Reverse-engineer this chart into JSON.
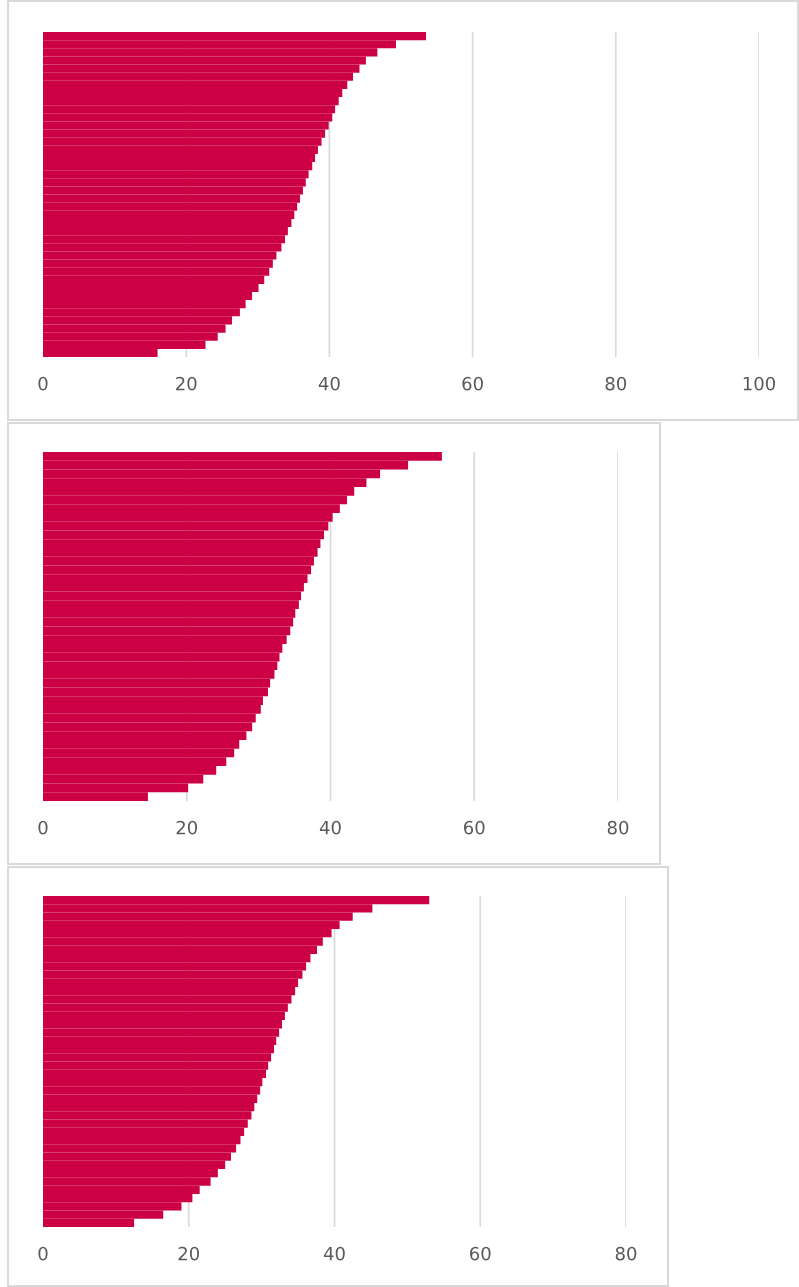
{
  "chart_data": [
    {
      "type": "bar",
      "orientation": "horizontal",
      "color": "#cc0044",
      "grid": "x",
      "tick_labels": "x",
      "xlim": [
        0,
        100
      ],
      "xticks": [
        0,
        20,
        40,
        60,
        80,
        100
      ],
      "categories": [
        null,
        null,
        null,
        null,
        null,
        null,
        null,
        null,
        null,
        null,
        null,
        null,
        null,
        null,
        null,
        null,
        null,
        null,
        null,
        null,
        null,
        null,
        null,
        null,
        null,
        null,
        null,
        null,
        null,
        null,
        null,
        null,
        null,
        null,
        null,
        null,
        null,
        null,
        null,
        null
      ],
      "values": [
        53.5,
        49.3,
        46.7,
        45.1,
        44.2,
        43.3,
        42.5,
        41.8,
        41.3,
        40.8,
        40.4,
        39.9,
        39.4,
        38.9,
        38.4,
        38.0,
        37.6,
        37.1,
        36.7,
        36.3,
        35.9,
        35.5,
        35.1,
        34.7,
        34.2,
        33.8,
        33.3,
        32.6,
        32.1,
        31.6,
        30.9,
        30.1,
        29.2,
        28.3,
        27.5,
        26.4,
        25.5,
        24.4,
        22.7,
        16.0
      ]
    },
    {
      "type": "bar",
      "orientation": "horizontal",
      "color": "#cc0044",
      "grid": "x",
      "tick_labels": "x",
      "xlim": [
        0,
        80
      ],
      "xticks": [
        0,
        20,
        40,
        60,
        80
      ],
      "categories": [
        null,
        null,
        null,
        null,
        null,
        null,
        null,
        null,
        null,
        null,
        null,
        null,
        null,
        null,
        null,
        null,
        null,
        null,
        null,
        null,
        null,
        null,
        null,
        null,
        null,
        null,
        null,
        null,
        null,
        null,
        null,
        null,
        null,
        null,
        null,
        null,
        null,
        null,
        null,
        null
      ],
      "values": [
        55.5,
        50.8,
        46.9,
        45.0,
        43.3,
        42.3,
        41.3,
        40.3,
        39.7,
        39.1,
        38.6,
        38.2,
        37.7,
        37.3,
        36.8,
        36.3,
        35.9,
        35.6,
        35.1,
        34.8,
        34.4,
        33.9,
        33.3,
        32.9,
        32.6,
        32.2,
        31.6,
        31.3,
        30.6,
        30.3,
        29.6,
        29.1,
        28.3,
        27.3,
        26.6,
        25.5,
        24.1,
        22.3,
        20.2,
        14.6
      ]
    },
    {
      "type": "bar",
      "orientation": "horizontal",
      "color": "#cc0044",
      "grid": "x",
      "tick_labels": "x",
      "xlim": [
        0,
        80
      ],
      "xticks": [
        0,
        20,
        40,
        60,
        80
      ],
      "categories": [
        null,
        null,
        null,
        null,
        null,
        null,
        null,
        null,
        null,
        null,
        null,
        null,
        null,
        null,
        null,
        null,
        null,
        null,
        null,
        null,
        null,
        null,
        null,
        null,
        null,
        null,
        null,
        null,
        null,
        null,
        null,
        null,
        null,
        null,
        null,
        null,
        null,
        null,
        null,
        null
      ],
      "values": [
        53.0,
        45.2,
        42.5,
        40.7,
        39.6,
        38.4,
        37.6,
        36.7,
        36.1,
        35.6,
        35.0,
        34.6,
        34.1,
        33.6,
        33.2,
        32.8,
        32.4,
        32.0,
        31.7,
        31.3,
        30.9,
        30.6,
        30.1,
        29.8,
        29.4,
        29.0,
        28.6,
        28.1,
        27.6,
        27.1,
        26.5,
        25.8,
        25.0,
        24.0,
        23.0,
        21.5,
        20.5,
        19.0,
        16.5,
        12.5
      ]
    }
  ]
}
